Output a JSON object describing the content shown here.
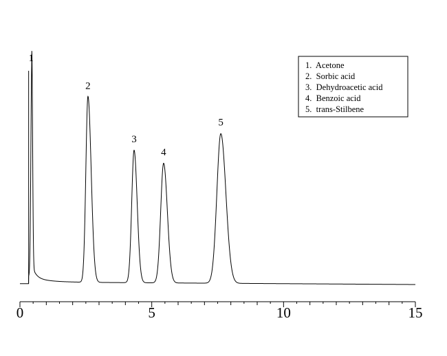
{
  "chart_data": {
    "type": "line",
    "title": "",
    "xlabel": "",
    "ylabel": "",
    "xlim": [
      0,
      15
    ],
    "x_ticks": [
      "0",
      "5",
      "10",
      "15"
    ],
    "grid": false,
    "legend_position": "top-right",
    "legend": [
      "1.  Acetone",
      "2.  Sorbic acid",
      "3.  Dehydroacetic acid",
      "4.  Benzoic acid",
      "5.  trans-Stilbene"
    ],
    "peaks": [
      {
        "label": "1",
        "time": 0.45,
        "height": 1.0
      },
      {
        "label": "2",
        "time": 2.58,
        "height": 0.87
      },
      {
        "label": "3",
        "time": 4.33,
        "height": 0.62
      },
      {
        "label": "4",
        "time": 5.45,
        "height": 0.56
      },
      {
        "label": "5",
        "time": 7.62,
        "height": 0.7
      }
    ]
  }
}
